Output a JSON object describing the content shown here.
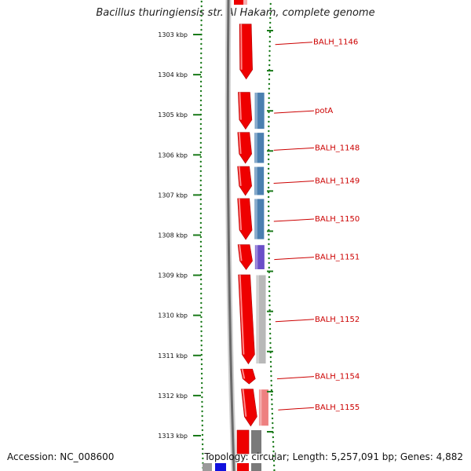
{
  "map": {
    "title": "Bacillus thuringiensis str. Al Hakam, complete genome",
    "accession": "Accession: NC_008600",
    "topology": "Topology: circular; Length: 5,257,091 bp; Genes: 4,882"
  },
  "colors": {
    "cds_forward": "#ee0000",
    "cog_blue": "#4a7fb0",
    "cog_purple": "#6a4ec8",
    "cog_gray": "#b8b8b8",
    "cog_pink": "#ee8080",
    "label_red": "#cc0000",
    "tick_green": "#1a7a1a",
    "backbone_gray": "#6a6a6a"
  },
  "kbp_ticks": [
    {
      "label": "1303 kbp",
      "kbp": 1303
    },
    {
      "label": "1304 kbp",
      "kbp": 1304
    },
    {
      "label": "1305 kbp",
      "kbp": 1305
    },
    {
      "label": "1306 kbp",
      "kbp": 1306
    },
    {
      "label": "1307 kbp",
      "kbp": 1307
    },
    {
      "label": "1308 kbp",
      "kbp": 1308
    },
    {
      "label": "1309 kbp",
      "kbp": 1309
    },
    {
      "label": "1310 kbp",
      "kbp": 1310
    },
    {
      "label": "1311 kbp",
      "kbp": 1311
    },
    {
      "label": "1312 kbp",
      "kbp": 1312
    },
    {
      "label": "1313 kbp",
      "kbp": 1313
    }
  ],
  "genes": [
    {
      "label": "BALH_1146",
      "start_kbp": 1302.7,
      "end_kbp": 1304.15,
      "cog": null
    },
    {
      "label": "potA",
      "start_kbp": 1304.4,
      "end_kbp": 1305.4,
      "cog": "cog_blue"
    },
    {
      "label": "BALH_1148",
      "start_kbp": 1305.4,
      "end_kbp": 1306.25,
      "cog": "cog_blue"
    },
    {
      "label": "BALH_1149",
      "start_kbp": 1306.25,
      "end_kbp": 1307.05,
      "cog": "cog_blue"
    },
    {
      "label": "BALH_1150",
      "start_kbp": 1307.05,
      "end_kbp": 1308.15,
      "cog": "cog_blue"
    },
    {
      "label": "BALH_1151",
      "start_kbp": 1308.2,
      "end_kbp": 1308.9,
      "cog": "cog_purple"
    },
    {
      "label": "BALH_1152",
      "start_kbp": 1308.95,
      "end_kbp": 1311.25,
      "cog": "cog_gray"
    },
    {
      "label": "BALH_1154",
      "start_kbp": 1311.3,
      "end_kbp": 1311.75,
      "cog": null
    },
    {
      "label": "BALH_1155",
      "start_kbp": 1311.8,
      "end_kbp": 1312.8,
      "cog": "cog_pink"
    }
  ]
}
